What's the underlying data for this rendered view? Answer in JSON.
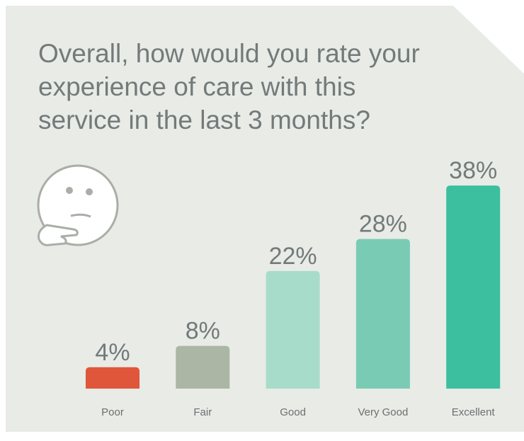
{
  "chart_data": {
    "type": "bar",
    "title": [
      "Overall, how would you rate your",
      "experience of care with this",
      "service in the last 3 months?"
    ],
    "categories": [
      "Poor",
      "Fair",
      "Good",
      "Very Good",
      "Excellent"
    ],
    "values": [
      4,
      8,
      22,
      28,
      38
    ],
    "value_labels": [
      "4%",
      "8%",
      "22%",
      "28%",
      "38%"
    ],
    "colors": [
      "#e0563a",
      "#abb6a4",
      "#a7dccb",
      "#7acbb3",
      "#3bbf9f"
    ]
  }
}
